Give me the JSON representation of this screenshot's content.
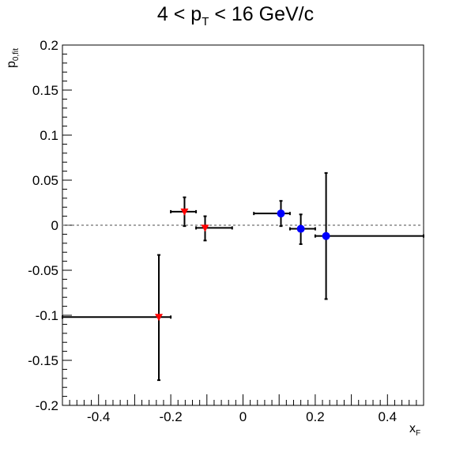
{
  "chart_data": {
    "type": "scatter",
    "title": {
      "main_a": "4 < p",
      "sub": "T",
      "main_b": " < 16 GeV/c"
    },
    "xlabel": {
      "main": "x",
      "sub": "F"
    },
    "ylabel": {
      "main": "p",
      "sub": "0,fit"
    },
    "xlim": [
      -0.5,
      0.5
    ],
    "ylim": [
      -0.2,
      0.2
    ],
    "xticks": [
      -0.4,
      -0.2,
      0,
      0.2,
      0.4
    ],
    "xtick_labels": [
      "-0.4",
      "-0.2",
      "0",
      "0.2",
      "0.4"
    ],
    "yticks": [
      -0.2,
      -0.15,
      -0.1,
      -0.05,
      0,
      0.05,
      0.1,
      0.15,
      0.2
    ],
    "ytick_labels": [
      "-0.2",
      "-0.15",
      "-0.1",
      "-0.05",
      "0",
      "0.05",
      "0.1",
      "0.15",
      "0.2"
    ],
    "reference_line": {
      "y": 0,
      "style": "dashed",
      "color": "#888888"
    },
    "grid": false,
    "series": [
      {
        "marker": "triangle-down",
        "color": "#ff0000",
        "points": [
          {
            "x": -0.233,
            "y": -0.102,
            "xerr_lo": -0.5,
            "xerr_hi": -0.2,
            "yerr_lo": -0.172,
            "yerr_hi": -0.033
          },
          {
            "x": -0.162,
            "y": 0.015,
            "xerr_lo": -0.2,
            "xerr_hi": -0.13,
            "yerr_lo": -0.001,
            "yerr_hi": 0.031
          },
          {
            "x": -0.105,
            "y": -0.003,
            "xerr_lo": -0.13,
            "xerr_hi": -0.03,
            "yerr_lo": -0.017,
            "yerr_hi": 0.01
          }
        ]
      },
      {
        "marker": "circle",
        "color": "#0000ff",
        "points": [
          {
            "x": 0.105,
            "y": 0.013,
            "xerr_lo": 0.03,
            "xerr_hi": 0.13,
            "yerr_lo": -0.001,
            "yerr_hi": 0.027
          },
          {
            "x": 0.16,
            "y": -0.004,
            "xerr_lo": 0.13,
            "xerr_hi": 0.2,
            "yerr_lo": -0.021,
            "yerr_hi": 0.012
          },
          {
            "x": 0.23,
            "y": -0.012,
            "xerr_lo": 0.2,
            "xerr_hi": 0.5,
            "yerr_lo": -0.082,
            "yerr_hi": 0.058
          }
        ]
      }
    ]
  }
}
